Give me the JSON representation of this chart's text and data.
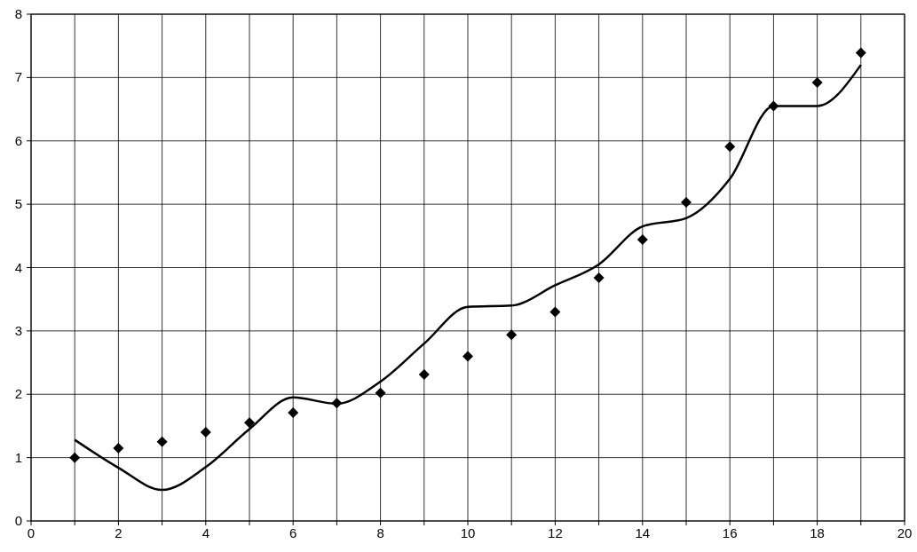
{
  "chart_data": {
    "type": "scatter",
    "xlim": [
      0,
      20
    ],
    "ylim": [
      0,
      8
    ],
    "xticks": [
      0,
      {
        "value": 1,
        "label": null
      },
      2,
      {
        "value": 3,
        "label": null
      },
      4,
      {
        "value": 5,
        "label": null
      },
      6,
      {
        "value": 7,
        "label": null
      },
      8,
      {
        "value": 9,
        "label": null
      },
      10,
      {
        "value": 11,
        "label": null
      },
      12,
      {
        "value": 13,
        "label": null
      },
      14,
      {
        "value": 15,
        "label": null
      },
      16,
      {
        "value": 17,
        "label": null
      },
      18,
      {
        "value": 19,
        "label": null
      },
      20
    ],
    "yticks": [
      0,
      1,
      2,
      3,
      4,
      5,
      6,
      7,
      8
    ],
    "grid": true,
    "series": [
      {
        "marker": "diamond",
        "color": "#000000",
        "x": [
          1,
          2,
          3,
          4,
          5,
          6,
          7,
          8,
          9,
          10,
          11,
          12,
          13,
          14,
          15,
          16,
          17,
          18,
          19
        ],
        "values": [
          1.0,
          1.15,
          1.25,
          1.4,
          1.55,
          1.71,
          1.86,
          2.02,
          2.31,
          2.6,
          2.94,
          3.3,
          3.84,
          4.44,
          5.03,
          5.91,
          6.55,
          6.92,
          7.39
        ]
      },
      {
        "type": "line",
        "line_style": "solid",
        "color": "#000000",
        "x": [
          1,
          2,
          3,
          4,
          5,
          6,
          7,
          8,
          9,
          10,
          11,
          12,
          13,
          14,
          15,
          16,
          17,
          18,
          19
        ],
        "values": [
          1.28,
          0.84,
          0.49,
          0.85,
          1.45,
          1.95,
          1.85,
          2.2,
          2.8,
          3.38,
          3.4,
          3.72,
          4.05,
          4.65,
          4.78,
          5.4,
          6.55,
          6.55,
          7.2
        ]
      }
    ]
  }
}
